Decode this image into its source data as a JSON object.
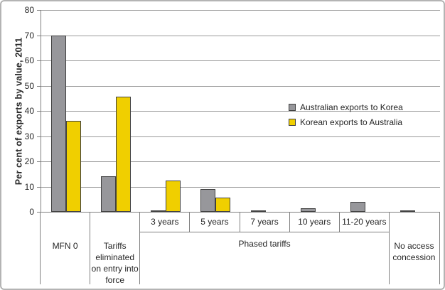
{
  "chart_data": {
    "type": "bar",
    "title": "",
    "xlabel": "",
    "ylabel": "Per cent of exports by value, 2011",
    "ylim": [
      0,
      80
    ],
    "yticks": [
      0,
      10,
      20,
      30,
      40,
      50,
      60,
      70,
      80
    ],
    "grid": "horizontal",
    "legend_position": "inside-right-middle",
    "categories": [
      "MFN 0",
      "Tariffs eliminated on entry into force",
      "3 years",
      "5 years",
      "7 years",
      "10 years",
      "11-20 years",
      "No access concession"
    ],
    "category_groups": [
      {
        "label": "MFN 0",
        "span": [
          0,
          0
        ],
        "has_subcategories": false
      },
      {
        "label": "Tariffs eliminated on entry into force",
        "span": [
          1,
          1
        ],
        "has_subcategories": false
      },
      {
        "label": "Phased tariffs",
        "span": [
          2,
          6
        ],
        "has_subcategories": true
      },
      {
        "label": "No access concession",
        "span": [
          7,
          7
        ],
        "has_subcategories": false
      }
    ],
    "series": [
      {
        "name": "Australian exports to Korea",
        "color": "#97979B",
        "values": [
          70,
          14,
          0.6,
          9,
          0.4,
          1.5,
          4,
          0.4
        ]
      },
      {
        "name": "Korean exports to Australia",
        "color": "#F0CF00",
        "values": [
          36,
          45.5,
          12.5,
          5.5,
          0,
          0,
          0,
          0
        ]
      }
    ],
    "colors": {
      "bar_border": "#404040",
      "gridline": "#999999",
      "axis_line": "#7F7F7F",
      "chart_border": "#B4B4B4",
      "text": "#262626"
    }
  }
}
